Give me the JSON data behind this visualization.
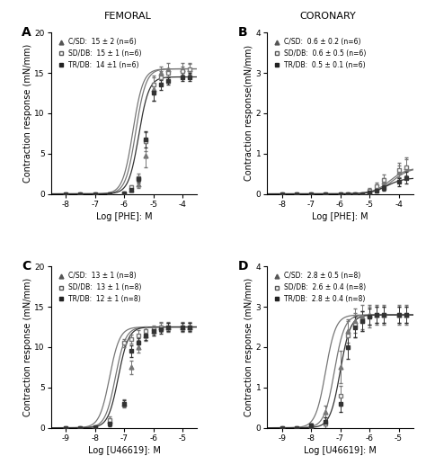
{
  "fig_width": 4.74,
  "fig_height": 5.17,
  "dpi": 100,
  "background_color": "#ffffff",
  "col_titles": [
    "FEMORAL",
    "CORONARY"
  ],
  "panel_labels": [
    "A",
    "B",
    "C",
    "D"
  ],
  "panels": [
    {
      "id": "A",
      "xlabel": "Log [PHE]: M",
      "ylabel": "Contraction response (mN/mm)",
      "ylim": [
        0,
        20
      ],
      "yticks": [
        0,
        5,
        10,
        15,
        20
      ],
      "xlim": [
        -8.5,
        -3.5
      ],
      "xticks": [
        -8,
        -7,
        -6,
        -5,
        -4
      ],
      "xticklabels": [
        "-8",
        "-7",
        "-6",
        "-5",
        "-4"
      ],
      "legend_entries": [
        {
          "label": "C/SD:  15 ± 2 (n=6)",
          "marker": "^",
          "fillstyle": "full",
          "color": "#555555"
        },
        {
          "label": "SD/DB:  15 ± 1 (n=6)",
          "marker": "s",
          "fillstyle": "none",
          "color": "#555555"
        },
        {
          "label": "TR/DB:  14 ±1 (n=6)",
          "marker": "s",
          "fillstyle": "full",
          "color": "#222222"
        }
      ],
      "curves": [
        {
          "ec50": -5.7,
          "hill": 2.5,
          "color": "#777777",
          "x_data": [
            -8,
            -7.5,
            -7,
            -6.5,
            -6,
            -5.75,
            -5.5,
            -5.25,
            -5,
            -4.75,
            -4.5,
            -4,
            -3.75
          ],
          "y_data": [
            0,
            0,
            0,
            0,
            0.1,
            0.5,
            1.2,
            4.8,
            13,
            15,
            15.5,
            15.5,
            15.5
          ],
          "yerr": [
            0,
            0,
            0,
            0,
            0.05,
            0.2,
            0.5,
            1.5,
            1.5,
            0.8,
            0.7,
            0.7,
            0.7
          ],
          "marker": "^",
          "fillstyle": "full"
        },
        {
          "ec50": -5.6,
          "hill": 2.5,
          "color": "#777777",
          "x_data": [
            -8,
            -7.5,
            -7,
            -6.5,
            -6,
            -5.75,
            -5.5,
            -5.25,
            -5,
            -4.75,
            -4.5,
            -4,
            -3.75
          ],
          "y_data": [
            0,
            0,
            0,
            0,
            0.1,
            0.8,
            2.0,
            6.5,
            13.5,
            14.5,
            15.0,
            15.2,
            15.5
          ],
          "yerr": [
            0,
            0,
            0,
            0,
            0.05,
            0.3,
            0.5,
            1.2,
            1.2,
            0.7,
            0.6,
            0.6,
            0.6
          ],
          "marker": "s",
          "fillstyle": "none"
        },
        {
          "ec50": -5.5,
          "hill": 2.5,
          "color": "#333333",
          "x_data": [
            -8,
            -7.5,
            -7,
            -6.5,
            -6,
            -5.75,
            -5.5,
            -5.25,
            -5,
            -4.75,
            -4.5,
            -4,
            -3.75
          ],
          "y_data": [
            0,
            0,
            0,
            0,
            0.05,
            0.5,
            1.8,
            6.8,
            12.5,
            13.5,
            14.0,
            14.5,
            14.5
          ],
          "yerr": [
            0,
            0,
            0,
            0,
            0.05,
            0.2,
            0.4,
            1.0,
            1.0,
            0.6,
            0.5,
            0.5,
            0.5
          ],
          "marker": "s",
          "fillstyle": "full"
        }
      ]
    },
    {
      "id": "B",
      "xlabel": "Log [PHE]: M",
      "ylabel": "Contraction response(mN/mm)",
      "ylim": [
        0,
        4
      ],
      "yticks": [
        0,
        1,
        2,
        3,
        4
      ],
      "xlim": [
        -8.5,
        -3.5
      ],
      "xticks": [
        -8,
        -7,
        -6,
        -5,
        -4
      ],
      "xticklabels": [
        "-8",
        "-7",
        "-6",
        "-5",
        "-4"
      ],
      "legend_entries": [
        {
          "label": "C/SD:  0.6 ± 0.2 (n=6)",
          "marker": "^",
          "fillstyle": "full",
          "color": "#555555"
        },
        {
          "label": "SD/DB:  0.6 ± 0.5 (n=6)",
          "marker": "s",
          "fillstyle": "none",
          "color": "#555555"
        },
        {
          "label": "TR/DB:  0.5 ± 0.1 (n=6)",
          "marker": "s",
          "fillstyle": "full",
          "color": "#222222"
        }
      ],
      "curves": [
        {
          "ec50": -4.3,
          "hill": 1.5,
          "color": "#777777",
          "x_data": [
            -8,
            -7.5,
            -7,
            -6.5,
            -6,
            -5.75,
            -5.5,
            -5.25,
            -5,
            -4.75,
            -4.5,
            -4,
            -3.75
          ],
          "y_data": [
            0,
            0,
            0,
            0,
            0,
            0,
            0,
            0,
            0.05,
            0.15,
            0.3,
            0.55,
            0.65
          ],
          "yerr": [
            0,
            0,
            0,
            0,
            0,
            0,
            0,
            0,
            0.05,
            0.08,
            0.1,
            0.15,
            0.2
          ],
          "marker": "^",
          "fillstyle": "full"
        },
        {
          "ec50": -4.2,
          "hill": 1.5,
          "color": "#777777",
          "x_data": [
            -8,
            -7.5,
            -7,
            -6.5,
            -6,
            -5.75,
            -5.5,
            -5.25,
            -5,
            -4.75,
            -4.5,
            -4,
            -3.75
          ],
          "y_data": [
            0,
            0,
            0,
            0,
            0,
            0,
            0,
            0,
            0.08,
            0.18,
            0.35,
            0.6,
            0.65
          ],
          "yerr": [
            0,
            0,
            0,
            0,
            0,
            0,
            0,
            0,
            0.07,
            0.1,
            0.12,
            0.18,
            0.25
          ],
          "marker": "s",
          "fillstyle": "none"
        },
        {
          "ec50": -4.4,
          "hill": 1.5,
          "color": "#333333",
          "x_data": [
            -8,
            -7.5,
            -7,
            -6.5,
            -6,
            -5.75,
            -5.5,
            -5.25,
            -5,
            -4.75,
            -4.5,
            -4,
            -3.75
          ],
          "y_data": [
            0,
            0,
            0,
            0,
            0,
            0,
            0,
            0,
            0.03,
            0.08,
            0.15,
            0.3,
            0.4
          ],
          "yerr": [
            0,
            0,
            0,
            0,
            0,
            0,
            0,
            0,
            0.03,
            0.05,
            0.07,
            0.1,
            0.15
          ],
          "marker": "s",
          "fillstyle": "full"
        }
      ]
    },
    {
      "id": "C",
      "xlabel": "Log [U46619]: M",
      "ylabel": "Contraction response (mN/mm)",
      "ylim": [
        0,
        20
      ],
      "yticks": [
        0,
        5,
        10,
        15,
        20
      ],
      "xlim": [
        -9.5,
        -4.5
      ],
      "xticks": [
        -9,
        -8,
        -7,
        -6,
        -5
      ],
      "xticklabels": [
        "-9",
        "-8",
        "-7",
        "-6",
        "-5"
      ],
      "legend_entries": [
        {
          "label": "C/SD:  13 ± 1 (n=8)",
          "marker": "^",
          "fillstyle": "full",
          "color": "#555555"
        },
        {
          "label": "SD/DB:  13 ± 1 (n=8)",
          "marker": "s",
          "fillstyle": "none",
          "color": "#555555"
        },
        {
          "label": "TR/DB:  12 ± 1 (n=8)",
          "marker": "s",
          "fillstyle": "full",
          "color": "#222222"
        }
      ],
      "curves": [
        {
          "ec50": -7.3,
          "hill": 2.5,
          "color": "#777777",
          "x_data": [
            -9,
            -8.5,
            -8,
            -7.5,
            -7,
            -6.75,
            -6.5,
            -6.25,
            -6,
            -5.75,
            -5.5,
            -5,
            -4.75
          ],
          "y_data": [
            0,
            0,
            0.05,
            0.8,
            3.0,
            7.5,
            10.0,
            11.5,
            12.0,
            12.5,
            12.5,
            12.5,
            12.5
          ],
          "yerr": [
            0,
            0,
            0.05,
            0.3,
            0.5,
            0.8,
            0.7,
            0.7,
            0.6,
            0.6,
            0.6,
            0.6,
            0.6
          ],
          "marker": "^",
          "fillstyle": "full"
        },
        {
          "ec50": -7.5,
          "hill": 2.5,
          "color": "#777777",
          "x_data": [
            -9,
            -8.5,
            -8,
            -7.5,
            -7,
            -6.75,
            -6.5,
            -6.25,
            -6,
            -5.75,
            -5.5,
            -5,
            -4.75
          ],
          "y_data": [
            0,
            0,
            0.1,
            1.0,
            10.5,
            11.0,
            11.5,
            12.0,
            12.2,
            12.5,
            12.5,
            12.5,
            12.5
          ],
          "yerr": [
            0,
            0,
            0.07,
            0.4,
            0.5,
            0.6,
            0.6,
            0.6,
            0.5,
            0.5,
            0.5,
            0.5,
            0.5
          ],
          "marker": "s",
          "fillstyle": "none"
        },
        {
          "ec50": -7.2,
          "hill": 2.5,
          "color": "#333333",
          "x_data": [
            -9,
            -8.5,
            -8,
            -7.5,
            -7,
            -6.75,
            -6.5,
            -6.25,
            -6,
            -5.75,
            -5.5,
            -5,
            -4.75
          ],
          "y_data": [
            0,
            0,
            0.05,
            0.5,
            3.0,
            9.5,
            10.5,
            11.5,
            12.0,
            12.2,
            12.5,
            12.5,
            12.5
          ],
          "yerr": [
            0,
            0,
            0.05,
            0.3,
            0.4,
            0.7,
            0.6,
            0.6,
            0.5,
            0.5,
            0.5,
            0.5,
            0.5
          ],
          "marker": "s",
          "fillstyle": "full"
        }
      ]
    },
    {
      "id": "D",
      "xlabel": "Log [U46619]: M",
      "ylabel": "Contraction response (mN/mm)",
      "ylim": [
        0,
        4
      ],
      "yticks": [
        0,
        1,
        2,
        3,
        4
      ],
      "xlim": [
        -9.5,
        -4.5
      ],
      "xticks": [
        -9,
        -8,
        -7,
        -6,
        -5
      ],
      "xticklabels": [
        "-9",
        "-8",
        "-7",
        "-6",
        "-5"
      ],
      "legend_entries": [
        {
          "label": "C/SD:  2.8 ± 0.5 (n=8)",
          "marker": "^",
          "fillstyle": "full",
          "color": "#555555"
        },
        {
          "label": "SD/DB:  2.6 ± 0.4 (n=8)",
          "marker": "s",
          "fillstyle": "none",
          "color": "#555555"
        },
        {
          "label": "TR/DB:  2.8 ± 0.4 (n=8)",
          "marker": "s",
          "fillstyle": "full",
          "color": "#222222"
        }
      ],
      "curves": [
        {
          "ec50": -7.5,
          "hill": 2.5,
          "color": "#777777",
          "x_data": [
            -9,
            -8.5,
            -8,
            -7.5,
            -7,
            -6.75,
            -6.5,
            -6.25,
            -6,
            -5.75,
            -5.5,
            -5,
            -4.75
          ],
          "y_data": [
            0,
            0,
            0.05,
            0.4,
            1.5,
            2.4,
            2.65,
            2.75,
            2.8,
            2.8,
            2.8,
            2.8,
            2.8
          ],
          "yerr": [
            0,
            0,
            0.05,
            0.15,
            0.4,
            0.3,
            0.3,
            0.3,
            0.25,
            0.25,
            0.25,
            0.25,
            0.25
          ],
          "marker": "^",
          "fillstyle": "full"
        },
        {
          "ec50": -7.2,
          "hill": 2.5,
          "color": "#777777",
          "x_data": [
            -9,
            -8.5,
            -8,
            -7.5,
            -7,
            -6.75,
            -6.5,
            -6.25,
            -6,
            -5.75,
            -5.5,
            -5,
            -4.75
          ],
          "y_data": [
            0,
            0,
            0.05,
            0.1,
            0.8,
            2.3,
            2.55,
            2.65,
            2.75,
            2.8,
            2.8,
            2.8,
            2.8
          ],
          "yerr": [
            0,
            0,
            0.05,
            0.1,
            0.25,
            0.35,
            0.3,
            0.25,
            0.25,
            0.2,
            0.2,
            0.2,
            0.2
          ],
          "marker": "s",
          "fillstyle": "none"
        },
        {
          "ec50": -7.0,
          "hill": 2.5,
          "color": "#333333",
          "x_data": [
            -9,
            -8.5,
            -8,
            -7.5,
            -7,
            -6.75,
            -6.5,
            -6.25,
            -6,
            -5.75,
            -5.5,
            -5,
            -4.75
          ],
          "y_data": [
            0,
            0,
            0.05,
            0.15,
            0.6,
            2.0,
            2.5,
            2.65,
            2.75,
            2.8,
            2.8,
            2.8,
            2.8
          ],
          "yerr": [
            0,
            0,
            0.05,
            0.1,
            0.2,
            0.3,
            0.25,
            0.25,
            0.2,
            0.2,
            0.2,
            0.2,
            0.2
          ],
          "marker": "s",
          "fillstyle": "full"
        }
      ]
    }
  ]
}
